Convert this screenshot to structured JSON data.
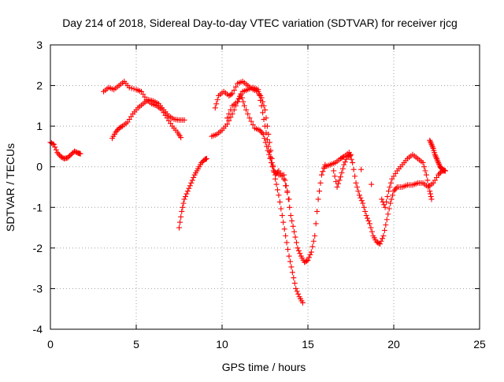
{
  "chart_data": {
    "type": "scatter",
    "title": "Day 214 of 2018, Sidereal Day-to-day VTEC variation (SDTVAR) for receiver rjcg",
    "xlabel": "GPS time / hours",
    "ylabel": "SDTVAR / TECUs",
    "xlim": [
      0,
      25
    ],
    "ylim": [
      -4,
      3
    ],
    "xticks": [
      "0",
      "5",
      "10",
      "15",
      "20",
      "25"
    ],
    "yticks": [
      "-4",
      "-3",
      "-2",
      "-1",
      "0",
      "1",
      "2",
      "3"
    ],
    "grid": true,
    "marker": "plus",
    "series_color": "#ff0000",
    "series": [
      {
        "points": [
          [
            0.0,
            0.6
          ],
          [
            0.2,
            0.55
          ],
          [
            0.4,
            0.35
          ],
          [
            0.6,
            0.25
          ],
          [
            0.8,
            0.2
          ],
          [
            1.0,
            0.22
          ],
          [
            1.2,
            0.3
          ],
          [
            1.4,
            0.38
          ],
          [
            1.6,
            0.34
          ],
          [
            1.75,
            0.32
          ]
        ]
      },
      {
        "points": [
          [
            3.1,
            1.85
          ],
          [
            3.4,
            1.95
          ],
          [
            3.7,
            1.9
          ],
          [
            4.0,
            2.0
          ],
          [
            4.3,
            2.1
          ],
          [
            4.6,
            1.95
          ],
          [
            5.0,
            1.9
          ],
          [
            5.3,
            1.85
          ],
          [
            5.6,
            1.65
          ],
          [
            5.9,
            1.55
          ],
          [
            6.2,
            1.5
          ],
          [
            6.5,
            1.4
          ],
          [
            6.8,
            1.2
          ],
          [
            7.1,
            1.0
          ],
          [
            7.4,
            0.85
          ],
          [
            7.6,
            0.72
          ]
        ]
      },
      {
        "points": [
          [
            3.6,
            0.7
          ],
          [
            3.8,
            0.85
          ],
          [
            4.0,
            0.95
          ],
          [
            4.2,
            1.0
          ],
          [
            4.5,
            1.1
          ],
          [
            4.8,
            1.3
          ],
          [
            5.1,
            1.45
          ],
          [
            5.4,
            1.55
          ],
          [
            5.7,
            1.65
          ],
          [
            6.0,
            1.62
          ],
          [
            6.3,
            1.55
          ],
          [
            6.6,
            1.4
          ],
          [
            6.9,
            1.25
          ],
          [
            7.2,
            1.17
          ],
          [
            7.5,
            1.15
          ],
          [
            7.8,
            1.15
          ]
        ]
      },
      {
        "points": [
          [
            7.5,
            -1.5
          ],
          [
            7.65,
            -1.1
          ],
          [
            7.8,
            -0.8
          ],
          [
            8.0,
            -0.6
          ],
          [
            8.2,
            -0.4
          ],
          [
            8.4,
            -0.2
          ],
          [
            8.6,
            -0.05
          ],
          [
            8.8,
            0.1
          ],
          [
            9.0,
            0.18
          ],
          [
            9.1,
            0.2
          ]
        ]
      },
      {
        "points": [
          [
            9.4,
            0.75
          ],
          [
            9.7,
            0.8
          ],
          [
            10.0,
            0.9
          ],
          [
            10.3,
            1.05
          ],
          [
            10.6,
            1.3
          ],
          [
            10.9,
            1.6
          ],
          [
            11.1,
            1.8
          ],
          [
            11.3,
            1.5
          ],
          [
            11.6,
            1.2
          ],
          [
            11.9,
            0.95
          ],
          [
            12.2,
            0.9
          ],
          [
            12.4,
            0.8
          ],
          [
            12.6,
            0.5
          ],
          [
            12.8,
            0.2
          ],
          [
            13.0,
            -0.1
          ],
          [
            13.3,
            -0.2
          ],
          [
            13.6,
            -0.2
          ],
          [
            13.8,
            -0.6
          ],
          [
            14.0,
            -1.2
          ],
          [
            14.2,
            -1.6
          ],
          [
            14.4,
            -2.0
          ],
          [
            14.6,
            -2.2
          ],
          [
            14.8,
            -2.35
          ],
          [
            15.0,
            -2.3
          ],
          [
            15.2,
            -2.1
          ],
          [
            15.4,
            -1.7
          ],
          [
            15.6,
            -0.8
          ],
          [
            15.8,
            -0.2
          ],
          [
            16.0,
            0.05
          ]
        ]
      },
      {
        "points": [
          [
            9.6,
            1.45
          ],
          [
            9.8,
            1.75
          ],
          [
            10.1,
            1.85
          ],
          [
            10.4,
            1.75
          ],
          [
            10.6,
            1.8
          ],
          [
            10.9,
            2.05
          ],
          [
            11.2,
            2.1
          ],
          [
            11.5,
            2.0
          ],
          [
            11.8,
            1.9
          ],
          [
            12.1,
            1.85
          ],
          [
            12.3,
            1.7
          ],
          [
            12.5,
            1.4
          ],
          [
            12.7,
            0.8
          ],
          [
            12.9,
            0.2
          ],
          [
            13.1,
            -0.3
          ],
          [
            13.3,
            -0.7
          ],
          [
            13.5,
            -1.2
          ],
          [
            13.7,
            -1.7
          ],
          [
            13.9,
            -2.2
          ],
          [
            14.1,
            -2.6
          ],
          [
            14.3,
            -3.0
          ],
          [
            14.5,
            -3.2
          ],
          [
            14.7,
            -3.35
          ]
        ]
      },
      {
        "points": [
          [
            10.3,
            1.2
          ],
          [
            10.6,
            1.5
          ],
          [
            10.9,
            1.6
          ],
          [
            11.2,
            1.85
          ],
          [
            11.5,
            1.9
          ],
          [
            11.8,
            1.95
          ],
          [
            12.1,
            1.9
          ],
          [
            12.3,
            1.5
          ],
          [
            12.5,
            1.0
          ],
          [
            12.7,
            0.5
          ],
          [
            12.9,
            0.1
          ],
          [
            13.1,
            -0.2
          ],
          [
            13.3,
            -0.1
          ],
          [
            13.6,
            -0.3
          ],
          [
            13.9,
            -0.8
          ]
        ]
      },
      {
        "points": [
          [
            16.0,
            0.0
          ],
          [
            16.3,
            0.05
          ],
          [
            16.6,
            0.1
          ],
          [
            16.9,
            0.2
          ],
          [
            17.1,
            0.25
          ],
          [
            17.4,
            0.35
          ],
          [
            17.6,
            0.1
          ],
          [
            17.8,
            -0.4
          ],
          [
            18.0,
            -0.7
          ],
          [
            18.2,
            -0.9
          ],
          [
            18.4,
            -1.2
          ],
          [
            18.6,
            -1.4
          ],
          [
            18.8,
            -1.7
          ],
          [
            19.0,
            -1.85
          ],
          [
            19.2,
            -1.9
          ],
          [
            19.4,
            -1.7
          ],
          [
            19.6,
            -1.3
          ],
          [
            19.8,
            -0.9
          ],
          [
            20.0,
            -0.6
          ],
          [
            20.2,
            -0.5
          ],
          [
            20.5,
            -0.5
          ],
          [
            20.8,
            -0.45
          ],
          [
            21.1,
            -0.45
          ],
          [
            21.4,
            -0.4
          ],
          [
            21.7,
            -0.4
          ],
          [
            22.0,
            -0.5
          ],
          [
            22.3,
            -0.4
          ],
          [
            22.6,
            -0.2
          ],
          [
            22.8,
            -0.1
          ],
          [
            23.0,
            -0.1
          ]
        ]
      },
      {
        "points": [
          [
            16.5,
            -0.1
          ],
          [
            16.7,
            -0.5
          ],
          [
            16.9,
            -0.25
          ],
          [
            17.1,
            0.05
          ],
          [
            17.3,
            0.25
          ],
          [
            17.5,
            0.3
          ],
          [
            19.3,
            -0.8
          ],
          [
            19.5,
            -1.0
          ],
          [
            19.7,
            -0.6
          ],
          [
            19.9,
            -0.3
          ],
          [
            20.2,
            -0.1
          ],
          [
            20.5,
            0.05
          ],
          [
            20.8,
            0.2
          ],
          [
            21.1,
            0.3
          ],
          [
            21.4,
            0.2
          ],
          [
            21.7,
            0.1
          ],
          [
            21.9,
            -0.2
          ],
          [
            22.1,
            -0.6
          ],
          [
            22.2,
            -0.8
          ]
        ]
      },
      {
        "points": [
          [
            22.1,
            0.65
          ],
          [
            22.2,
            0.55
          ],
          [
            22.3,
            0.45
          ],
          [
            22.4,
            0.3
          ],
          [
            22.5,
            0.2
          ],
          [
            22.6,
            0.1
          ],
          [
            22.7,
            0.0
          ],
          [
            22.8,
            -0.05
          ],
          [
            22.9,
            -0.08
          ],
          [
            23.0,
            -0.1
          ]
        ]
      }
    ]
  }
}
